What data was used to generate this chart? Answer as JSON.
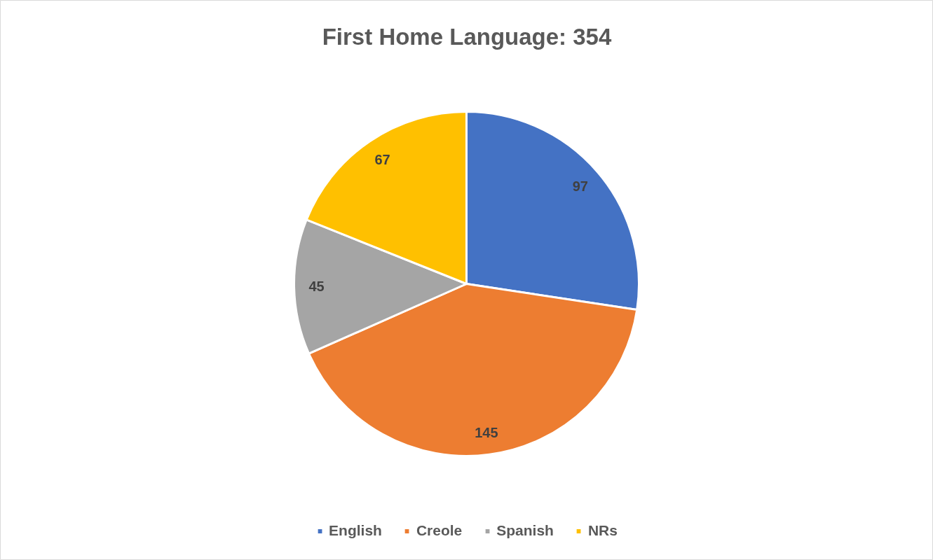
{
  "chart_data": {
    "type": "pie",
    "title": "First Home Language: 354",
    "categories": [
      "English",
      "Creole",
      "Spanish",
      "NRs"
    ],
    "values": [
      97,
      145,
      45,
      67
    ],
    "colors": [
      "#4472c4",
      "#ed7d31",
      "#a5a5a5",
      "#ffc000"
    ],
    "data_labels": true,
    "legend": "bottom"
  }
}
